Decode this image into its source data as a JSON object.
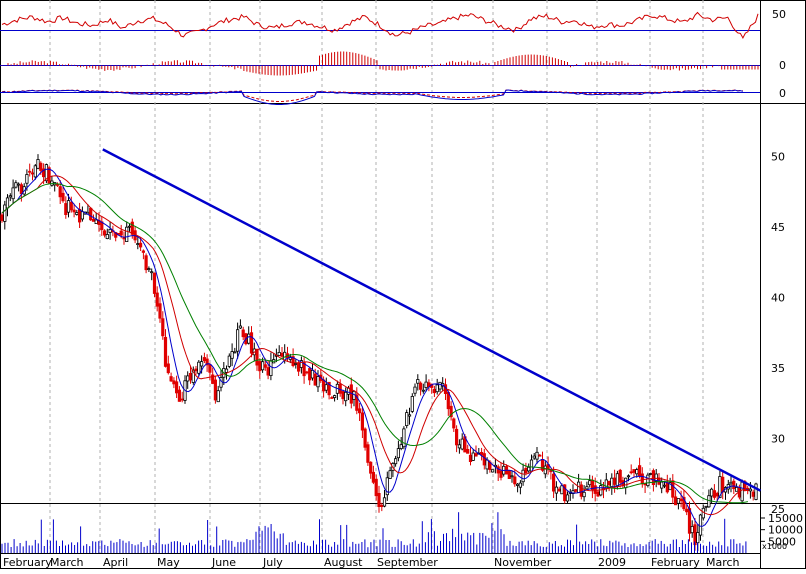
{
  "chart_data": [
    {
      "panel": "rsi",
      "type": "line",
      "y_ticks": [
        "50"
      ],
      "reference_line": 50,
      "ylim": [
        20,
        80
      ],
      "x_months": [
        "February",
        "March",
        "April",
        "May",
        "June",
        "July",
        "August",
        "September",
        "November",
        "2009",
        "February",
        "March"
      ],
      "series": [
        {
          "x": [
            0,
            6,
            12,
            18,
            24,
            30,
            36,
            42,
            48,
            54,
            60,
            66,
            72,
            78,
            84,
            90,
            96,
            102,
            108,
            114,
            120,
            126,
            132,
            138,
            144,
            150,
            156,
            162,
            168,
            174,
            180,
            186,
            192,
            198,
            204,
            210,
            216,
            222,
            228,
            234,
            240,
            246,
            252,
            258,
            264,
            270,
            276,
            282,
            288,
            294,
            300
          ],
          "values": [
            56,
            61,
            64,
            59,
            63,
            57,
            55,
            61,
            52,
            60,
            62,
            55,
            44,
            48,
            56,
            61,
            64,
            55,
            52,
            57,
            59,
            54,
            50,
            58,
            64,
            55,
            44,
            48,
            54,
            57,
            63,
            66,
            60,
            54,
            50,
            62,
            65,
            59,
            60,
            53,
            56,
            55,
            60,
            66,
            62,
            58,
            66,
            61,
            63,
            40,
            65
          ]
        }
      ],
      "colors": {
        "line": "#d00000",
        "reference": "#0000cc"
      }
    },
    {
      "panel": "momentum-histogram",
      "type": "bar",
      "y_ticks": [
        "0"
      ],
      "zero_line": 0,
      "colors": {
        "bars": "#d00000",
        "zero": "#0000cc"
      }
    },
    {
      "panel": "macd",
      "type": "line",
      "y_ticks": [
        "0"
      ],
      "zero_line": 0,
      "series_styles": [
        {
          "color": "#0000cc",
          "dash": "solid"
        },
        {
          "color": "#d00000",
          "dash": "dashed"
        }
      ],
      "colors": {
        "zero": "#0000cc"
      }
    },
    {
      "panel": "price",
      "type": "candlestick",
      "y_ticks": [
        "50",
        "45",
        "40",
        "35",
        "30",
        "25"
      ],
      "ylim": [
        20,
        55
      ],
      "x_months": [
        "February",
        "March",
        "April",
        "May",
        "June",
        "July",
        "August",
        "September",
        "November",
        "2009",
        "February",
        "March"
      ],
      "close": {
        "x": [
          0,
          5,
          10,
          15,
          20,
          25,
          30,
          35,
          40,
          45,
          50,
          55,
          60,
          65,
          70,
          75,
          80,
          85,
          90,
          95,
          100,
          105,
          110,
          115,
          120,
          125,
          130,
          135,
          140,
          145,
          150,
          155,
          160,
          165,
          170,
          175,
          180,
          185,
          190,
          195,
          200,
          205,
          210,
          215,
          220,
          225,
          230,
          235,
          240,
          245,
          250,
          255,
          260,
          265,
          270,
          275,
          280,
          285,
          290,
          295,
          300
        ],
        "values": [
          46,
          47.5,
          48.3,
          49.5,
          48.4,
          46.5,
          46,
          45.5,
          45,
          44,
          44.7,
          43.5,
          41,
          35.5,
          32.5,
          34.5,
          36,
          33,
          35.5,
          38,
          36,
          34.5,
          36,
          35.5,
          35,
          34,
          33.5,
          33.3,
          32.8,
          29,
          25,
          28,
          31,
          33.7,
          34,
          33.5,
          30,
          29,
          28.5,
          27.5,
          28,
          26.5,
          29,
          28,
          26.3,
          26,
          26.5,
          26.5,
          26.5,
          27,
          27.5,
          27,
          27,
          26.5,
          25,
          23,
          25.5,
          26.8,
          26.5,
          26.3,
          26.5
        ]
      },
      "moving_averages": [
        {
          "color": "#0000cc"
        },
        {
          "color": "#d00000"
        },
        {
          "color": "#008000"
        }
      ],
      "trendline": {
        "x": [
          40,
          301
        ],
        "y": [
          50.5,
          26.3
        ],
        "color": "#0000cc"
      }
    },
    {
      "panel": "volume",
      "type": "bar",
      "y_ticks": [
        "15000",
        "10000",
        "5000"
      ],
      "y_unit_label": "x1000",
      "ylim": [
        0,
        18000
      ],
      "colors": {
        "bars": "#0000cc"
      }
    }
  ]
}
